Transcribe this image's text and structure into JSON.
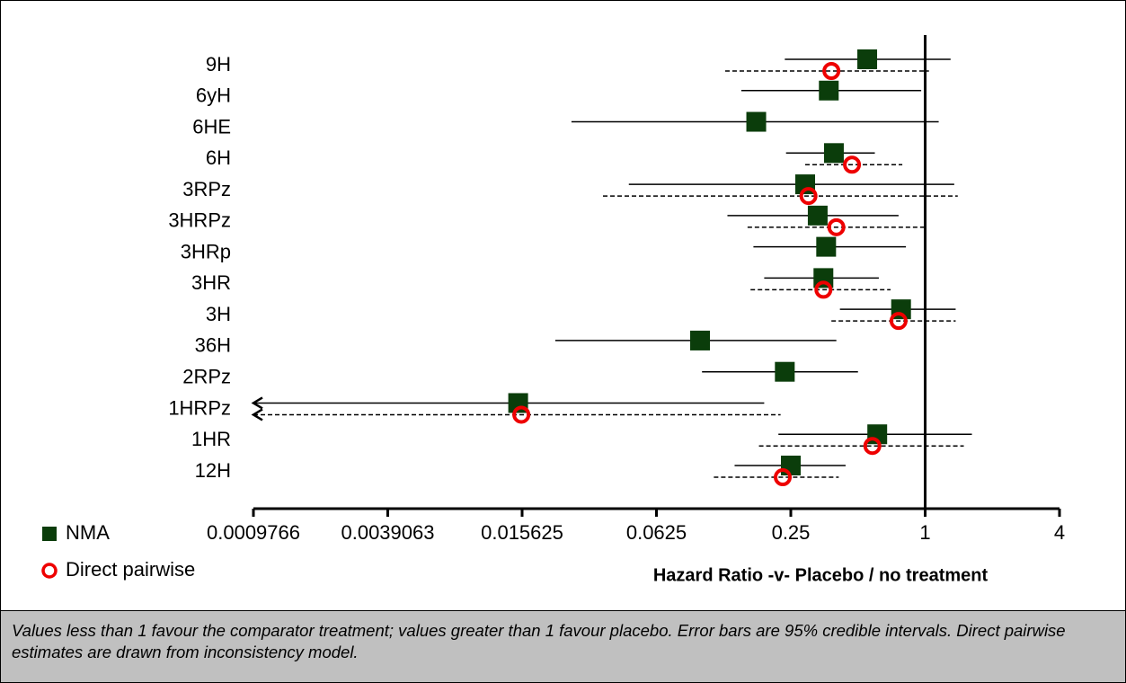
{
  "chart_data": {
    "type": "forest",
    "xlabel": "Hazard Ratio -v- Placebo / no treatment",
    "categories": [
      "9H",
      "6yH",
      "6HE",
      "6H",
      "3RPz",
      "3HRPz",
      "3HRp",
      "3HR",
      "3H",
      "36H",
      "2RPz",
      "1HRPz",
      "1HR",
      "12H"
    ],
    "series": [
      {
        "name": "NMA",
        "color": "#0b3d0b",
        "marker": "square",
        "line_style": "solid",
        "values": [
          0.55,
          0.37,
          0.175,
          0.39,
          0.29,
          0.33,
          0.36,
          0.35,
          0.78,
          0.098,
          0.235,
          0.015,
          0.61,
          0.25
        ],
        "lower": [
          0.235,
          0.15,
          0.026,
          0.238,
          0.047,
          0.13,
          0.17,
          0.19,
          0.415,
          0.022,
          0.1,
          0.0009766,
          0.22,
          0.14
        ],
        "upper": [
          1.3,
          0.96,
          1.15,
          0.595,
          1.35,
          0.76,
          0.82,
          0.62,
          1.37,
          0.4,
          0.5,
          0.19,
          1.62,
          0.44
        ]
      },
      {
        "name": "Direct pairwise",
        "color": "#ee0000",
        "marker": "circle",
        "line_style": "dashed",
        "values": [
          0.38,
          null,
          null,
          0.47,
          0.3,
          0.4,
          null,
          0.35,
          0.76,
          null,
          null,
          0.0155,
          0.58,
          0.23
        ],
        "lower": [
          0.127,
          null,
          null,
          0.29,
          0.036,
          0.16,
          null,
          0.165,
          0.38,
          null,
          null,
          0.0009766,
          0.18,
          0.113
        ],
        "upper": [
          1.04,
          null,
          null,
          0.79,
          1.4,
          1.02,
          null,
          0.7,
          1.37,
          null,
          null,
          0.225,
          1.49,
          0.41
        ]
      }
    ],
    "x_scale": "log2",
    "xlim": [
      0.0009766,
      4
    ],
    "xticks": [
      0.0009766,
      0.0039063,
      0.015625,
      0.0625,
      0.25,
      1,
      4
    ],
    "reference_value": 1
  },
  "footnote": "Values less than 1 favour the comparator treatment; values greater than 1 favour placebo. Error bars are 95% credible intervals. Direct pairwise estimates are drawn from inconsistency model."
}
